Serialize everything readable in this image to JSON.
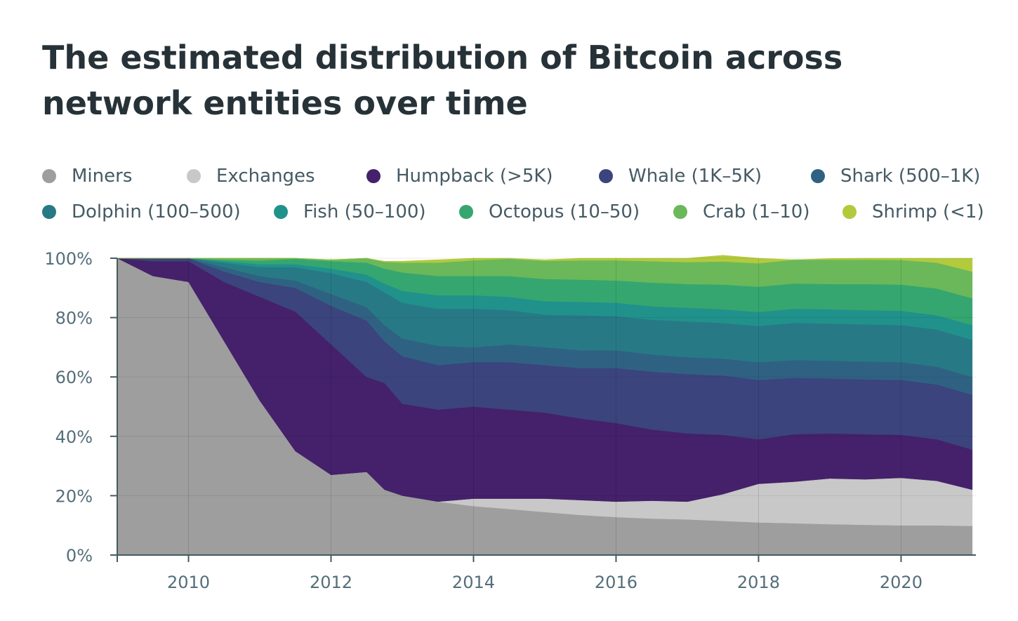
{
  "title": "The estimated distribution of Bitcoin across network entities over time",
  "legend": [
    {
      "label": "Miners",
      "color": "#9e9e9e"
    },
    {
      "label": "Exchanges",
      "color": "#c8c8c8"
    },
    {
      "label": "Humpback (>5K)",
      "color": "#44216a"
    },
    {
      "label": "Whale (1K–5K)",
      "color": "#3b447d"
    },
    {
      "label": "Shark (500–1K)",
      "color": "#2f6282"
    },
    {
      "label": "Dolphin (100–500)",
      "color": "#277a85"
    },
    {
      "label": "Fish (50–100)",
      "color": "#21918c"
    },
    {
      "label": "Octopus (10–50)",
      "color": "#35a66f"
    },
    {
      "label": "Crab (1–10)",
      "color": "#6ab85a"
    },
    {
      "label": "Shrimp (<1)",
      "color": "#b2ca3c"
    }
  ],
  "chart_data": {
    "type": "area",
    "stacked": true,
    "x": [
      2009.0,
      2009.5,
      2010.0,
      2010.5,
      2011.0,
      2011.5,
      2012.0,
      2012.5,
      2012.75,
      2013.0,
      2013.5,
      2014.0,
      2014.5,
      2015.0,
      2015.5,
      2016.0,
      2016.5,
      2017.0,
      2017.5,
      2018.0,
      2018.5,
      2019.0,
      2019.5,
      2020.0,
      2020.5,
      2021.0
    ],
    "series": [
      {
        "name": "Miners",
        "values": [
          100,
          94,
          92,
          72,
          52,
          35,
          27,
          28,
          22,
          20,
          18,
          16.5,
          15.5,
          14.5,
          13.5,
          12.8,
          12.3,
          12,
          11.5,
          11,
          10.7,
          10.4,
          10.2,
          10,
          10,
          9.8
        ]
      },
      {
        "name": "Exchanges",
        "values": [
          0,
          0,
          0,
          0,
          0,
          0,
          0,
          0,
          0,
          0,
          0,
          2.5,
          3.5,
          4.5,
          5,
          5.2,
          6,
          6,
          9,
          13,
          14,
          15.4,
          15.3,
          16,
          15,
          12.2
        ]
      },
      {
        "name": "Humpback (>5K)",
        "values": [
          0,
          5,
          7,
          20,
          35,
          47,
          44,
          32,
          36,
          31,
          31,
          31,
          30,
          29,
          27.5,
          26.5,
          24,
          23,
          20,
          15,
          16,
          15.2,
          15.2,
          14.5,
          14,
          13.5
        ]
      },
      {
        "name": "Whale (1K–5K)",
        "values": [
          0,
          1,
          1,
          3.5,
          5,
          8,
          13,
          19,
          14,
          16,
          15,
          15,
          16,
          16,
          17,
          18.5,
          19.5,
          20,
          20,
          20,
          19,
          18.5,
          18.5,
          18.5,
          18.5,
          18.5
        ]
      },
      {
        "name": "Shark (500–1K)",
        "values": [
          0,
          0,
          0,
          1.5,
          2,
          2.5,
          4,
          4.5,
          5.5,
          6,
          6.5,
          5,
          6,
          6,
          6,
          6,
          5.8,
          5.7,
          5.7,
          6,
          6,
          6,
          6,
          6,
          6,
          6
        ]
      },
      {
        "name": "Dolphin (100–500)",
        "values": [
          0,
          0,
          0,
          1.5,
          3,
          4.5,
          7,
          8.5,
          11,
          12,
          12.5,
          13,
          11.5,
          11,
          11.8,
          11.5,
          11.7,
          12,
          12,
          12.2,
          12.5,
          12.5,
          12.5,
          12.5,
          12.5,
          12.5
        ]
      },
      {
        "name": "Fish (50–100)",
        "values": [
          0,
          0,
          0,
          0.5,
          1,
          1,
          1.5,
          2.5,
          3,
          4,
          4.5,
          4.5,
          4.5,
          4.5,
          4.5,
          4.5,
          4.5,
          4.6,
          4.6,
          4.7,
          4.8,
          4.8,
          4.8,
          4.8,
          4.8,
          5
        ]
      },
      {
        "name": "Octopus (10–50)",
        "values": [
          0,
          0,
          0,
          0.5,
          1.2,
          1.8,
          2.5,
          4,
          5,
          6.2,
          6.5,
          6.5,
          7,
          7.5,
          7.5,
          7.5,
          8,
          8,
          8.3,
          8.5,
          8.5,
          8.5,
          8.8,
          8.8,
          9,
          9
        ]
      },
      {
        "name": "Crab (1–10)",
        "values": [
          0,
          0,
          0,
          0.5,
          0.8,
          0.2,
          0.5,
          1.5,
          2.3,
          3.3,
          4.5,
          5.3,
          5.8,
          6.1,
          6.5,
          6.8,
          7.2,
          7.4,
          7.8,
          7.9,
          8.0,
          8.2,
          8.2,
          8.3,
          8.7,
          9
        ]
      },
      {
        "name": "Shrimp (<1)",
        "values": [
          0,
          0,
          0,
          0,
          0,
          0,
          0,
          0,
          0.2,
          0.5,
          1,
          0.7,
          0.2,
          0.4,
          0.7,
          0.7,
          1,
          1.3,
          2.1,
          1.7,
          0,
          0.4,
          0.5,
          0.6,
          1.5,
          4.5
        ]
      }
    ],
    "xlim": [
      2009.0,
      2021.05
    ],
    "ylim": [
      0,
      100
    ],
    "x_ticks": [
      2010,
      2012,
      2014,
      2016,
      2018,
      2020
    ],
    "x_tick_labels": [
      "2010",
      "2012",
      "2014",
      "2016",
      "2018",
      "2020"
    ],
    "y_ticks": [
      0,
      20,
      40,
      60,
      80,
      100
    ],
    "y_tick_labels": [
      "0%",
      "20%",
      "40%",
      "60%",
      "80%",
      "100%"
    ],
    "grid": true,
    "legend_position": "top"
  }
}
